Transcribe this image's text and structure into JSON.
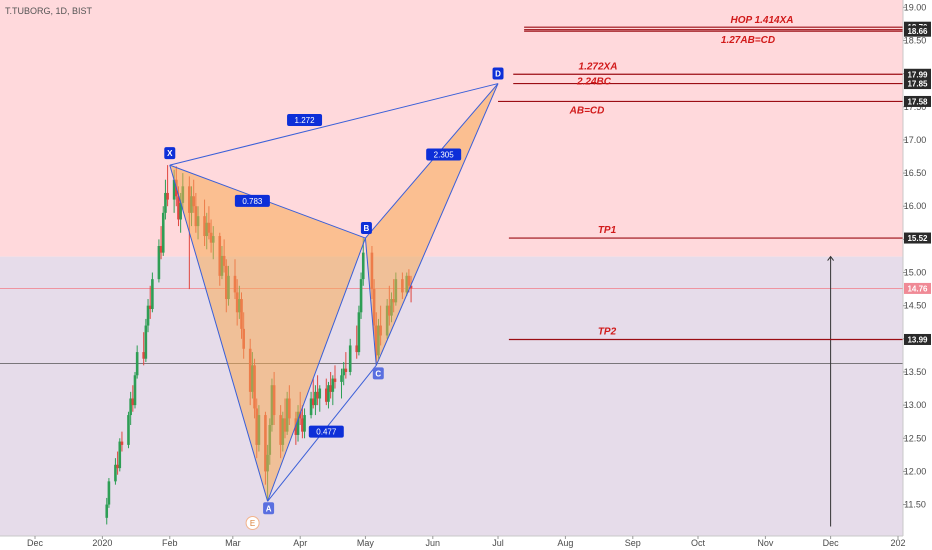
{
  "header": {
    "symbol_label": "T.TUBORG, 1D, BIST"
  },
  "colors": {
    "zone_upper": "#ffd9dc",
    "zone_lower": "#e6dcea",
    "pattern_fill": "#f7a954",
    "pattern_line": "#3a5fd8",
    "level_line": "#9b0d14",
    "label_red": "#d11a1a",
    "candle_up": "#2e9e55",
    "candle_down": "#e0463f",
    "price_tag": "#f08a96",
    "tag_bg": "#0d2fd8",
    "tag_bg_c": "#5a6fe0"
  },
  "chart_data": {
    "type": "candlestick",
    "y_axis": {
      "ticks": [
        "19.00",
        "18.50",
        "18.00",
        "17.50",
        "17.00",
        "16.50",
        "16.00",
        "15.50",
        "15.00",
        "14.50",
        "14.00",
        "13.50",
        "13.00",
        "12.50",
        "12.00",
        "11.50"
      ],
      "range": [
        11.32,
        19.05
      ]
    },
    "x_axis": {
      "ticks": [
        "Dec",
        "2020",
        "Feb",
        "Mar",
        "Apr",
        "May",
        "Jun",
        "Jul",
        "Aug",
        "Sep",
        "Oct",
        "Nov",
        "Dec",
        "202"
      ],
      "tick_dates": [
        "2019-12-01",
        "2020-01-01",
        "2020-02-01",
        "2020-03-01",
        "2020-04-01",
        "2020-05-01",
        "2020-06-01",
        "2020-07-01",
        "2020-08-01",
        "2020-09-01",
        "2020-10-01",
        "2020-11-01",
        "2020-12-01",
        "2021-01-01"
      ]
    },
    "current_price": 14.76,
    "zone_boundary": 15.24,
    "horizontal_lines": [
      13.63
    ],
    "pattern": {
      "points": [
        {
          "name": "X",
          "date": "2020-02-01",
          "price": 16.62
        },
        {
          "name": "A",
          "date": "2020-03-17",
          "price": 11.55
        },
        {
          "name": "B",
          "date": "2020-05-01",
          "price": 15.52
        },
        {
          "name": "C",
          "date": "2020-05-06",
          "price": 13.6
        },
        {
          "name": "D",
          "date": "2020-07-01",
          "price": 17.85
        }
      ],
      "ratios": [
        {
          "text": "1.272",
          "date": "2020-04-03",
          "price": 17.3
        },
        {
          "text": "0.783",
          "date": "2020-03-10",
          "price": 16.08
        },
        {
          "text": "2.305",
          "date": "2020-06-06",
          "price": 16.78
        },
        {
          "text": "0.477",
          "date": "2020-04-13",
          "price": 12.6
        }
      ]
    },
    "levels": [
      {
        "label": "HOP 1.414XA",
        "tag": "18.70",
        "price": 18.7,
        "from": "2020-07-13",
        "double": true
      },
      {
        "label": "1.27AB=CD",
        "tag": "18.66",
        "price": 18.64,
        "from": "2020-07-13",
        "double": false
      },
      {
        "label": "1.272XA",
        "tag": "17.99",
        "price": 17.99,
        "from": "2020-07-08",
        "double": false
      },
      {
        "label": "2.24BC",
        "tag": "17.85",
        "price": 17.85,
        "from": "2020-07-08",
        "double": false
      },
      {
        "label": "AB=CD",
        "tag": "17.58",
        "price": 17.58,
        "from": "2020-07-01",
        "double": false
      },
      {
        "label": "TP1",
        "tag": "15.52",
        "price": 15.52,
        "from": "2020-07-06",
        "double": false
      },
      {
        "label": "TP2",
        "tag": "13.99",
        "price": 13.99,
        "from": "2020-07-06",
        "double": false
      }
    ],
    "event_marker": {
      "text": "E",
      "date": "2020-03-17"
    },
    "vertical_arrow": {
      "date": "2020-12-01",
      "from_price": 11.32,
      "to_price": 15.24
    },
    "candles": [
      [
        "2020-01-03",
        11.3,
        11.6,
        11.2,
        11.5
      ],
      [
        "2020-01-04",
        11.5,
        11.9,
        11.45,
        11.85
      ],
      [
        "2020-01-07",
        11.85,
        12.2,
        11.8,
        12.1
      ],
      [
        "2020-01-08",
        12.1,
        12.3,
        11.95,
        12.05
      ],
      [
        "2020-01-09",
        12.05,
        12.5,
        12.0,
        12.45
      ],
      [
        "2020-01-10",
        12.45,
        12.6,
        12.3,
        12.4
      ],
      [
        "2020-01-13",
        12.4,
        12.9,
        12.35,
        12.85
      ],
      [
        "2020-01-14",
        12.85,
        13.2,
        12.7,
        13.1
      ],
      [
        "2020-01-15",
        13.1,
        13.3,
        12.9,
        13.0
      ],
      [
        "2020-01-16",
        13.0,
        13.5,
        12.95,
        13.45
      ],
      [
        "2020-01-17",
        13.45,
        13.9,
        13.4,
        13.8
      ],
      [
        "2020-01-20",
        13.8,
        14.1,
        13.6,
        13.7
      ],
      [
        "2020-01-21",
        13.7,
        14.3,
        13.65,
        14.2
      ],
      [
        "2020-01-22",
        14.2,
        14.6,
        14.1,
        14.5
      ],
      [
        "2020-01-23",
        14.5,
        14.8,
        14.3,
        14.45
      ],
      [
        "2020-01-24",
        14.45,
        15.0,
        14.4,
        14.9
      ],
      [
        "2020-01-27",
        14.9,
        15.5,
        14.85,
        15.4
      ],
      [
        "2020-01-28",
        15.4,
        15.7,
        15.2,
        15.3
      ],
      [
        "2020-01-29",
        15.3,
        16.0,
        15.25,
        15.9
      ],
      [
        "2020-01-30",
        15.9,
        16.4,
        15.8,
        16.2
      ],
      [
        "2020-01-31",
        16.2,
        16.62,
        16.0,
        16.1
      ],
      [
        "2020-02-03",
        16.1,
        16.55,
        15.9,
        16.4
      ],
      [
        "2020-02-04",
        16.4,
        16.6,
        16.0,
        16.15
      ],
      [
        "2020-02-05",
        16.15,
        16.3,
        15.7,
        15.8
      ],
      [
        "2020-02-06",
        15.8,
        16.2,
        15.6,
        16.05
      ],
      [
        "2020-02-07",
        16.05,
        16.5,
        15.95,
        16.3
      ],
      [
        "2020-02-10",
        16.3,
        16.45,
        14.75,
        15.9
      ],
      [
        "2020-02-11",
        15.9,
        16.3,
        15.7,
        16.15
      ],
      [
        "2020-02-12",
        16.15,
        16.4,
        15.9,
        16.0
      ],
      [
        "2020-02-13",
        16.0,
        16.2,
        15.6,
        15.7
      ],
      [
        "2020-02-14",
        15.7,
        16.0,
        15.5,
        15.85
      ],
      [
        "2020-02-17",
        15.85,
        16.1,
        15.4,
        15.55
      ],
      [
        "2020-02-18",
        15.55,
        15.9,
        15.35,
        15.75
      ],
      [
        "2020-02-19",
        15.75,
        16.0,
        15.5,
        15.6
      ],
      [
        "2020-02-20",
        15.6,
        15.8,
        15.3,
        15.45
      ],
      [
        "2020-02-21",
        15.45,
        15.7,
        15.2,
        15.55
      ],
      [
        "2020-02-24",
        15.55,
        15.6,
        14.8,
        14.95
      ],
      [
        "2020-02-25",
        14.95,
        15.4,
        14.9,
        15.25
      ],
      [
        "2020-02-26",
        15.25,
        15.5,
        15.0,
        15.1
      ],
      [
        "2020-02-27",
        15.1,
        15.2,
        14.4,
        14.6
      ],
      [
        "2020-02-28",
        14.6,
        15.1,
        14.5,
        14.95
      ],
      [
        "2020-03-02",
        14.95,
        15.2,
        14.6,
        14.7
      ],
      [
        "2020-03-03",
        14.7,
        14.9,
        14.2,
        14.4
      ],
      [
        "2020-03-04",
        14.4,
        14.8,
        14.3,
        14.6
      ],
      [
        "2020-03-05",
        14.6,
        14.7,
        14.0,
        14.15
      ],
      [
        "2020-03-06",
        14.15,
        14.4,
        13.7,
        13.85
      ],
      [
        "2020-03-09",
        13.85,
        14.0,
        13.0,
        13.2
      ],
      [
        "2020-03-10",
        13.2,
        13.8,
        13.1,
        13.6
      ],
      [
        "2020-03-11",
        13.6,
        13.7,
        12.8,
        12.95
      ],
      [
        "2020-03-12",
        12.95,
        13.1,
        12.2,
        12.4
      ],
      [
        "2020-03-13",
        12.4,
        13.0,
        12.3,
        12.85
      ],
      [
        "2020-03-16",
        12.85,
        12.9,
        11.8,
        12.0
      ],
      [
        "2020-03-17",
        12.0,
        12.4,
        11.55,
        12.25
      ],
      [
        "2020-03-18",
        12.25,
        12.8,
        12.1,
        12.7
      ],
      [
        "2020-03-19",
        12.7,
        13.4,
        12.6,
        13.3
      ],
      [
        "2020-03-20",
        13.3,
        13.5,
        12.7,
        12.85
      ],
      [
        "2020-03-23",
        12.85,
        13.0,
        12.2,
        12.4
      ],
      [
        "2020-03-24",
        12.4,
        12.9,
        12.3,
        12.8
      ],
      [
        "2020-03-25",
        12.8,
        13.1,
        12.5,
        12.6
      ],
      [
        "2020-03-26",
        12.6,
        13.2,
        12.55,
        13.1
      ],
      [
        "2020-03-27",
        13.1,
        13.3,
        12.7,
        12.8
      ],
      [
        "2020-03-30",
        12.8,
        12.9,
        12.4,
        12.55
      ],
      [
        "2020-03-31",
        12.55,
        13.0,
        12.45,
        12.9
      ],
      [
        "2020-04-01",
        12.9,
        13.2,
        12.7,
        12.8
      ],
      [
        "2020-04-02",
        12.8,
        13.0,
        12.5,
        12.6
      ],
      [
        "2020-04-03",
        12.6,
        12.95,
        12.5,
        12.85
      ],
      [
        "2020-04-06",
        12.85,
        13.2,
        12.8,
        13.1
      ],
      [
        "2020-04-07",
        13.1,
        13.4,
        12.95,
        13.0
      ],
      [
        "2020-04-08",
        13.0,
        13.3,
        12.85,
        13.2
      ],
      [
        "2020-04-09",
        13.2,
        13.45,
        13.0,
        13.1
      ],
      [
        "2020-04-10",
        13.1,
        13.3,
        12.9,
        13.25
      ],
      [
        "2020-04-13",
        13.25,
        13.4,
        13.0,
        13.05
      ],
      [
        "2020-04-14",
        13.05,
        13.35,
        12.95,
        13.3
      ],
      [
        "2020-04-15",
        13.3,
        13.5,
        13.1,
        13.2
      ],
      [
        "2020-04-16",
        13.2,
        13.45,
        13.0,
        13.4
      ],
      [
        "2020-04-17",
        13.4,
        13.6,
        13.25,
        13.35
      ],
      [
        "2020-04-20",
        13.35,
        13.55,
        13.1,
        13.45
      ],
      [
        "2020-04-21",
        13.45,
        13.65,
        13.3,
        13.55
      ],
      [
        "2020-04-22",
        13.55,
        13.8,
        13.4,
        13.5
      ],
      [
        "2020-04-24",
        13.5,
        14.0,
        13.45,
        13.9
      ],
      [
        "2020-04-27",
        13.9,
        14.2,
        13.7,
        13.8
      ],
      [
        "2020-04-28",
        13.8,
        14.5,
        13.75,
        14.4
      ],
      [
        "2020-04-29",
        14.4,
        15.0,
        14.3,
        14.9
      ],
      [
        "2020-04-30",
        14.9,
        15.52,
        14.8,
        15.3
      ],
      [
        "2020-05-04",
        15.3,
        15.4,
        14.6,
        14.75
      ],
      [
        "2020-05-05",
        14.75,
        14.9,
        14.0,
        14.2
      ],
      [
        "2020-05-06",
        14.2,
        14.4,
        13.6,
        13.75
      ],
      [
        "2020-05-07",
        13.75,
        14.3,
        13.7,
        14.2
      ],
      [
        "2020-05-08",
        14.2,
        14.5,
        13.9,
        14.05
      ],
      [
        "2020-05-11",
        14.05,
        14.6,
        14.0,
        14.5
      ],
      [
        "2020-05-12",
        14.5,
        14.8,
        14.2,
        14.35
      ],
      [
        "2020-05-13",
        14.35,
        14.7,
        14.25,
        14.6
      ],
      [
        "2020-05-14",
        14.6,
        14.9,
        14.4,
        14.55
      ],
      [
        "2020-05-15",
        14.55,
        15.0,
        14.5,
        14.9
      ],
      [
        "2020-05-18",
        14.9,
        15.0,
        14.6,
        14.7
      ],
      [
        "2020-05-20",
        14.7,
        15.0,
        14.65,
        14.95
      ],
      [
        "2020-05-21",
        14.95,
        15.05,
        14.7,
        14.8
      ],
      [
        "2020-05-22",
        14.8,
        14.95,
        14.55,
        14.76
      ]
    ]
  }
}
